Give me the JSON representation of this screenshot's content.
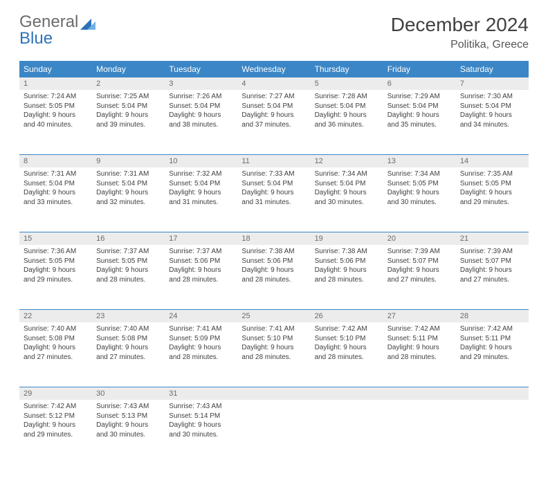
{
  "logo": {
    "text1": "General",
    "text2": "Blue"
  },
  "title": "December 2024",
  "location": "Politika, Greece",
  "header_bg": "#3b86c6",
  "daynum_bg": "#ececec",
  "weekdays": [
    "Sunday",
    "Monday",
    "Tuesday",
    "Wednesday",
    "Thursday",
    "Friday",
    "Saturday"
  ],
  "weeks": [
    [
      {
        "n": "1",
        "sr": "7:24 AM",
        "ss": "5:05 PM",
        "dl": "9 hours and 40 minutes."
      },
      {
        "n": "2",
        "sr": "7:25 AM",
        "ss": "5:04 PM",
        "dl": "9 hours and 39 minutes."
      },
      {
        "n": "3",
        "sr": "7:26 AM",
        "ss": "5:04 PM",
        "dl": "9 hours and 38 minutes."
      },
      {
        "n": "4",
        "sr": "7:27 AM",
        "ss": "5:04 PM",
        "dl": "9 hours and 37 minutes."
      },
      {
        "n": "5",
        "sr": "7:28 AM",
        "ss": "5:04 PM",
        "dl": "9 hours and 36 minutes."
      },
      {
        "n": "6",
        "sr": "7:29 AM",
        "ss": "5:04 PM",
        "dl": "9 hours and 35 minutes."
      },
      {
        "n": "7",
        "sr": "7:30 AM",
        "ss": "5:04 PM",
        "dl": "9 hours and 34 minutes."
      }
    ],
    [
      {
        "n": "8",
        "sr": "7:31 AM",
        "ss": "5:04 PM",
        "dl": "9 hours and 33 minutes."
      },
      {
        "n": "9",
        "sr": "7:31 AM",
        "ss": "5:04 PM",
        "dl": "9 hours and 32 minutes."
      },
      {
        "n": "10",
        "sr": "7:32 AM",
        "ss": "5:04 PM",
        "dl": "9 hours and 31 minutes."
      },
      {
        "n": "11",
        "sr": "7:33 AM",
        "ss": "5:04 PM",
        "dl": "9 hours and 31 minutes."
      },
      {
        "n": "12",
        "sr": "7:34 AM",
        "ss": "5:04 PM",
        "dl": "9 hours and 30 minutes."
      },
      {
        "n": "13",
        "sr": "7:34 AM",
        "ss": "5:05 PM",
        "dl": "9 hours and 30 minutes."
      },
      {
        "n": "14",
        "sr": "7:35 AM",
        "ss": "5:05 PM",
        "dl": "9 hours and 29 minutes."
      }
    ],
    [
      {
        "n": "15",
        "sr": "7:36 AM",
        "ss": "5:05 PM",
        "dl": "9 hours and 29 minutes."
      },
      {
        "n": "16",
        "sr": "7:37 AM",
        "ss": "5:05 PM",
        "dl": "9 hours and 28 minutes."
      },
      {
        "n": "17",
        "sr": "7:37 AM",
        "ss": "5:06 PM",
        "dl": "9 hours and 28 minutes."
      },
      {
        "n": "18",
        "sr": "7:38 AM",
        "ss": "5:06 PM",
        "dl": "9 hours and 28 minutes."
      },
      {
        "n": "19",
        "sr": "7:38 AM",
        "ss": "5:06 PM",
        "dl": "9 hours and 28 minutes."
      },
      {
        "n": "20",
        "sr": "7:39 AM",
        "ss": "5:07 PM",
        "dl": "9 hours and 27 minutes."
      },
      {
        "n": "21",
        "sr": "7:39 AM",
        "ss": "5:07 PM",
        "dl": "9 hours and 27 minutes."
      }
    ],
    [
      {
        "n": "22",
        "sr": "7:40 AM",
        "ss": "5:08 PM",
        "dl": "9 hours and 27 minutes."
      },
      {
        "n": "23",
        "sr": "7:40 AM",
        "ss": "5:08 PM",
        "dl": "9 hours and 27 minutes."
      },
      {
        "n": "24",
        "sr": "7:41 AM",
        "ss": "5:09 PM",
        "dl": "9 hours and 28 minutes."
      },
      {
        "n": "25",
        "sr": "7:41 AM",
        "ss": "5:10 PM",
        "dl": "9 hours and 28 minutes."
      },
      {
        "n": "26",
        "sr": "7:42 AM",
        "ss": "5:10 PM",
        "dl": "9 hours and 28 minutes."
      },
      {
        "n": "27",
        "sr": "7:42 AM",
        "ss": "5:11 PM",
        "dl": "9 hours and 28 minutes."
      },
      {
        "n": "28",
        "sr": "7:42 AM",
        "ss": "5:11 PM",
        "dl": "9 hours and 29 minutes."
      }
    ],
    [
      {
        "n": "29",
        "sr": "7:42 AM",
        "ss": "5:12 PM",
        "dl": "9 hours and 29 minutes."
      },
      {
        "n": "30",
        "sr": "7:43 AM",
        "ss": "5:13 PM",
        "dl": "9 hours and 30 minutes."
      },
      {
        "n": "31",
        "sr": "7:43 AM",
        "ss": "5:14 PM",
        "dl": "9 hours and 30 minutes."
      },
      null,
      null,
      null,
      null
    ]
  ],
  "labels": {
    "sunrise": "Sunrise: ",
    "sunset": "Sunset: ",
    "daylight": "Daylight: "
  }
}
